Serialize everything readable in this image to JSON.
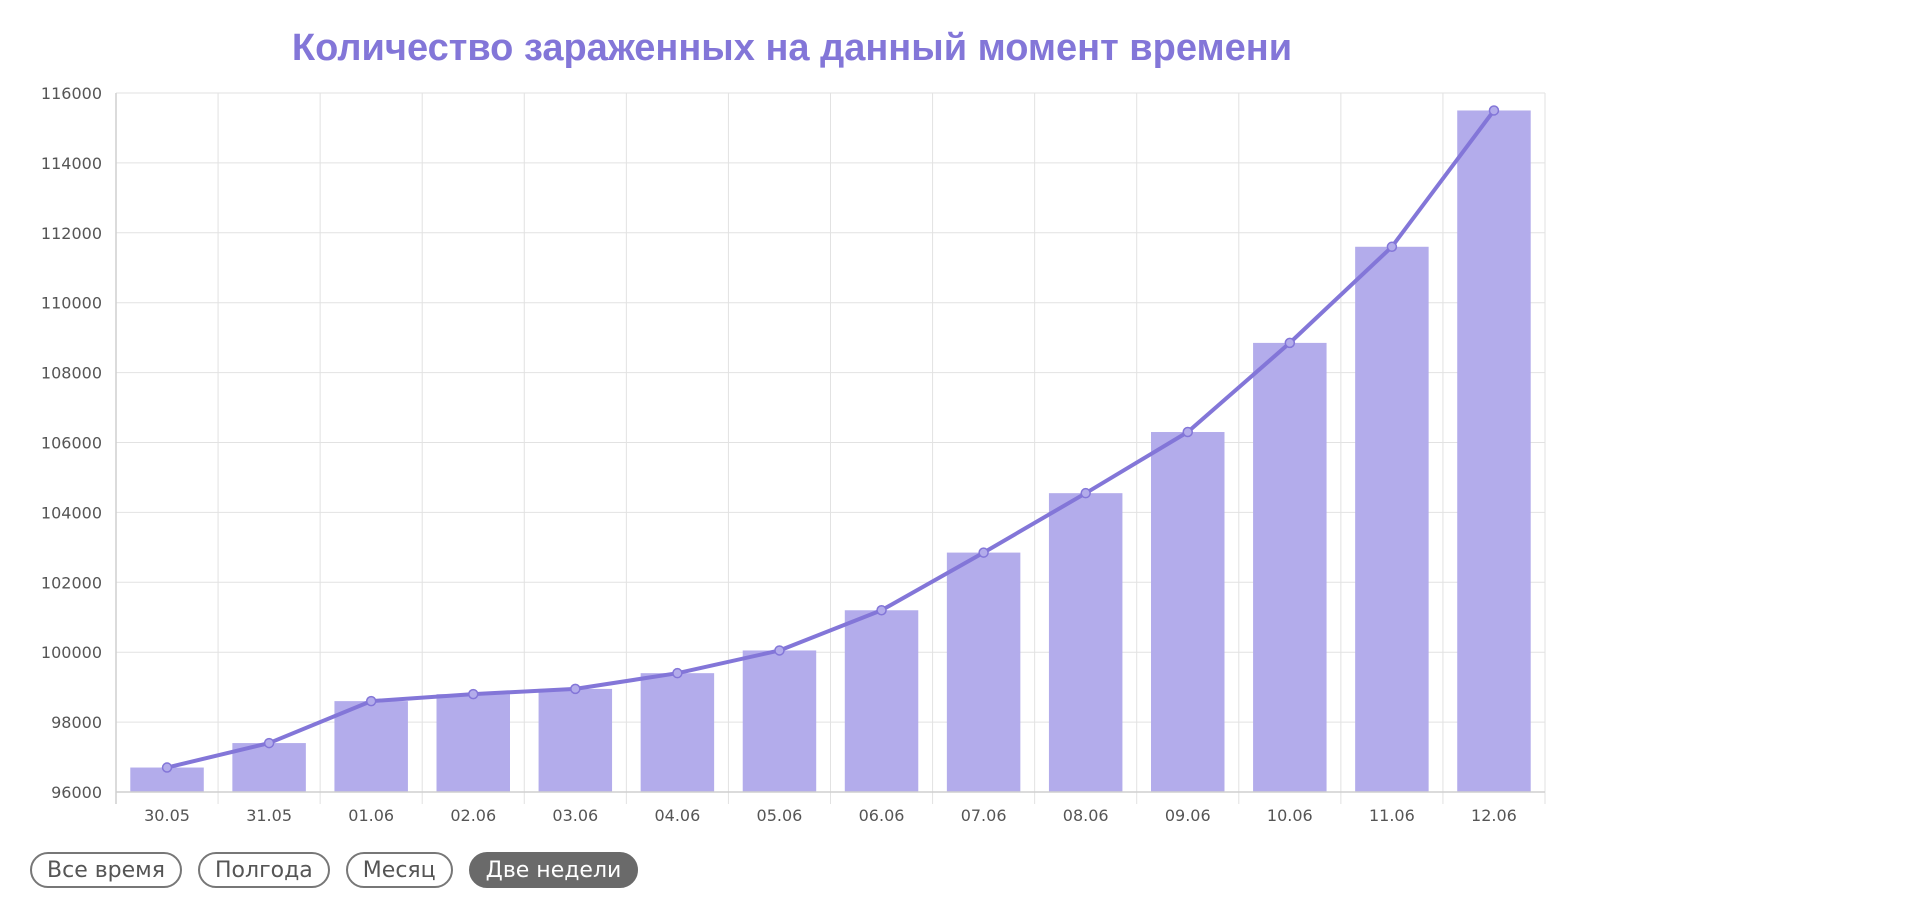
{
  "chart_data": {
    "type": "bar",
    "title": "Количество зараженных на данный момент времени",
    "xlabel": "",
    "ylabel": "",
    "categories": [
      "30.05",
      "31.05",
      "01.06",
      "02.06",
      "03.06",
      "04.06",
      "05.06",
      "06.06",
      "07.06",
      "08.06",
      "09.06",
      "10.06",
      "11.06",
      "12.06"
    ],
    "series": [
      {
        "type": "bar",
        "values": [
          96700,
          97400,
          98600,
          98800,
          98950,
          99400,
          100050,
          101200,
          102850,
          104550,
          106300,
          108850,
          111600,
          115500
        ]
      },
      {
        "type": "line",
        "values": [
          96700,
          97400,
          98600,
          98800,
          98950,
          99400,
          100050,
          101200,
          102850,
          104550,
          106300,
          108850,
          111600,
          115500
        ]
      }
    ],
    "ylim": [
      96000,
      116000
    ],
    "yticks": [
      "96000",
      "98000",
      "100000",
      "102000",
      "104000",
      "106000",
      "108000",
      "110000",
      "112000",
      "114000",
      "116000"
    ],
    "grid": true,
    "colors": {
      "bar": "#b3aceb",
      "line": "#8376d8",
      "title": "#8376d8"
    }
  },
  "range_buttons": [
    {
      "label": "Все время",
      "active": false
    },
    {
      "label": "Полгода",
      "active": false
    },
    {
      "label": "Месяц",
      "active": false
    },
    {
      "label": "Две недели",
      "active": true
    }
  ]
}
